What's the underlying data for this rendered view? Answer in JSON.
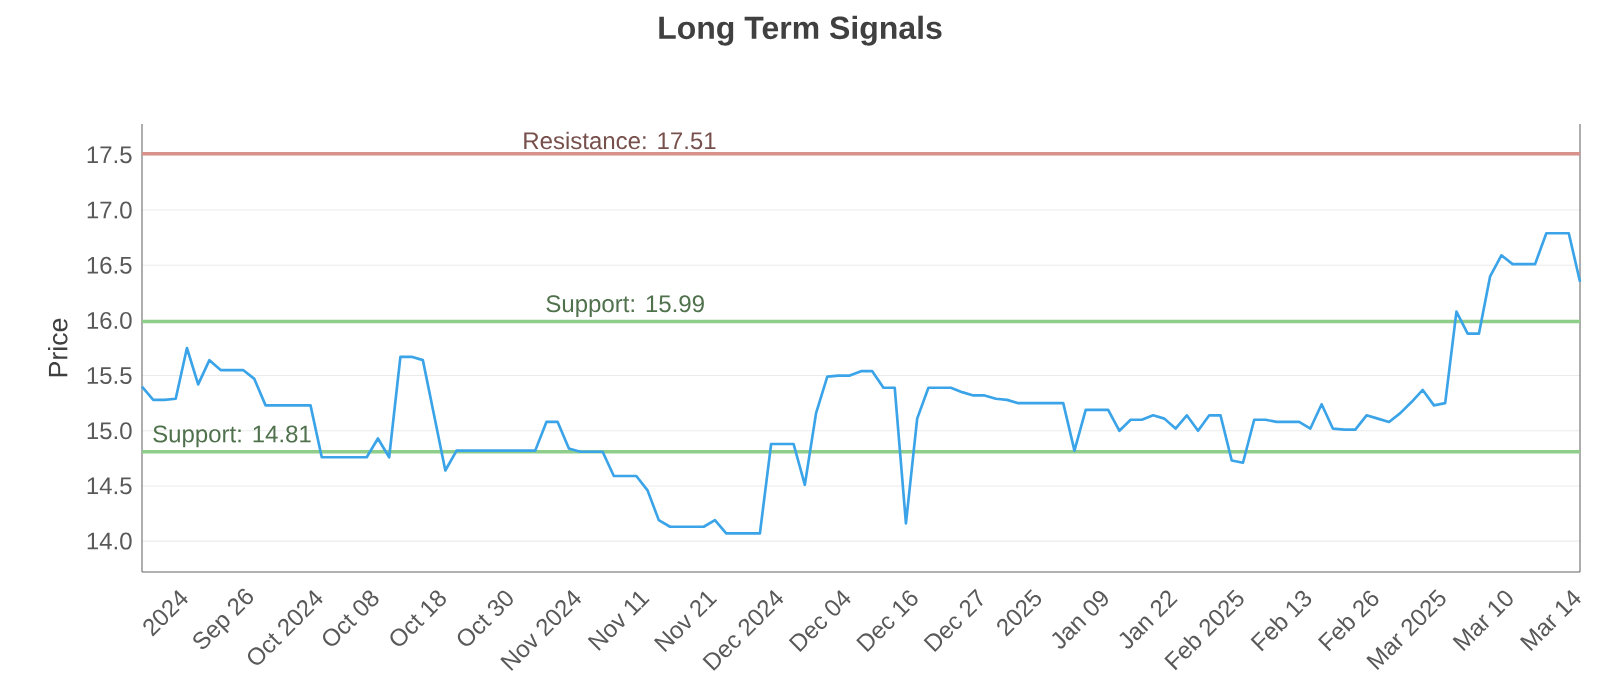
{
  "chart_data": {
    "type": "line",
    "title": "Long Term Signals",
    "ylabel": "Price",
    "categories": [
      null,
      null,
      null,
      "2024",
      null,
      null,
      null,
      null,
      null,
      "Sep 26",
      null,
      null,
      null,
      null,
      null,
      "Oct 2024",
      null,
      null,
      null,
      null,
      "Oct 08",
      null,
      null,
      null,
      null,
      null,
      "Oct 18",
      null,
      null,
      null,
      null,
      null,
      "Oct 30",
      null,
      null,
      null,
      null,
      null,
      "Nov 2024",
      null,
      null,
      null,
      null,
      null,
      "Nov 11",
      null,
      null,
      null,
      null,
      null,
      "Nov 21",
      null,
      null,
      null,
      null,
      null,
      "Dec 2024",
      null,
      null,
      null,
      null,
      null,
      "Dec 04",
      null,
      null,
      null,
      null,
      null,
      "Dec 16",
      null,
      null,
      null,
      null,
      null,
      "Dec 27",
      null,
      null,
      null,
      null,
      "2025",
      null,
      null,
      null,
      null,
      null,
      "Jan 09",
      null,
      null,
      null,
      null,
      null,
      "Jan 22",
      null,
      null,
      null,
      null,
      null,
      "Feb 2025",
      null,
      null,
      null,
      null,
      null,
      "Feb 13",
      null,
      null,
      null,
      null,
      null,
      "Feb 26",
      null,
      null,
      null,
      null,
      null,
      "Mar 2025",
      null,
      null,
      null,
      null,
      null,
      "Mar 10",
      null,
      null,
      null,
      null,
      null,
      "Mar 14",
      null
    ],
    "series": [
      {
        "color": "#3ba4e8",
        "values": [
          15.4,
          15.28,
          15.28,
          15.29,
          15.75,
          15.42,
          15.64,
          15.55,
          15.55,
          15.55,
          15.47,
          15.23,
          15.23,
          15.23,
          15.23,
          15.23,
          14.76,
          14.76,
          14.76,
          14.76,
          14.76,
          14.93,
          14.76,
          15.67,
          15.67,
          15.64,
          15.14,
          14.64,
          14.82,
          14.82,
          14.82,
          14.82,
          14.82,
          14.82,
          14.82,
          14.82,
          15.08,
          15.08,
          14.84,
          14.81,
          14.81,
          14.81,
          14.59,
          14.59,
          14.59,
          14.46,
          14.19,
          14.13,
          14.13,
          14.13,
          14.13,
          14.19,
          14.07,
          14.07,
          14.07,
          14.07,
          14.88,
          14.88,
          14.88,
          14.51,
          15.16,
          15.49,
          15.5,
          15.5,
          15.54,
          15.54,
          15.39,
          15.39,
          14.16,
          15.11,
          15.39,
          15.39,
          15.39,
          15.35,
          15.32,
          15.32,
          15.29,
          15.28,
          15.25,
          15.25,
          15.25,
          15.25,
          15.25,
          14.82,
          15.19,
          15.19,
          15.19,
          15.0,
          15.1,
          15.1,
          15.14,
          15.11,
          15.02,
          15.14,
          15.0,
          15.14,
          15.14,
          14.73,
          14.71,
          15.1,
          15.1,
          15.08,
          15.08,
          15.08,
          15.02,
          15.24,
          15.02,
          15.01,
          15.01,
          15.14,
          15.11,
          15.08,
          15.16,
          15.26,
          15.37,
          15.23,
          15.25,
          16.08,
          15.88,
          15.88,
          16.4,
          16.59,
          16.51,
          16.51,
          16.51,
          16.79,
          16.79,
          16.79,
          16.35
        ]
      }
    ],
    "ylim": [
      13.72,
      17.78
    ],
    "yticks": [
      {
        "value": 14.0,
        "label": "14.0"
      },
      {
        "value": 14.5,
        "label": "14.5"
      },
      {
        "value": 15.0,
        "label": "15.0"
      },
      {
        "value": 15.5,
        "label": "15.5"
      },
      {
        "value": 16.0,
        "label": "16.0"
      },
      {
        "value": 16.5,
        "label": "16.5"
      },
      {
        "value": 17.0,
        "label": "17.0"
      },
      {
        "value": 17.5,
        "label": "17.5"
      }
    ],
    "grid": "y",
    "ref_lines": [
      {
        "axis": "y",
        "value": 17.51,
        "label": "Resistance: 17.51",
        "color": "#d9918b"
      },
      {
        "axis": "y",
        "value": 15.99,
        "label": "Support: 15.99",
        "color": "#8fce8a"
      },
      {
        "axis": "y",
        "value": 14.81,
        "label": "Support: 14.81",
        "color": "#8fce8a"
      }
    ]
  }
}
